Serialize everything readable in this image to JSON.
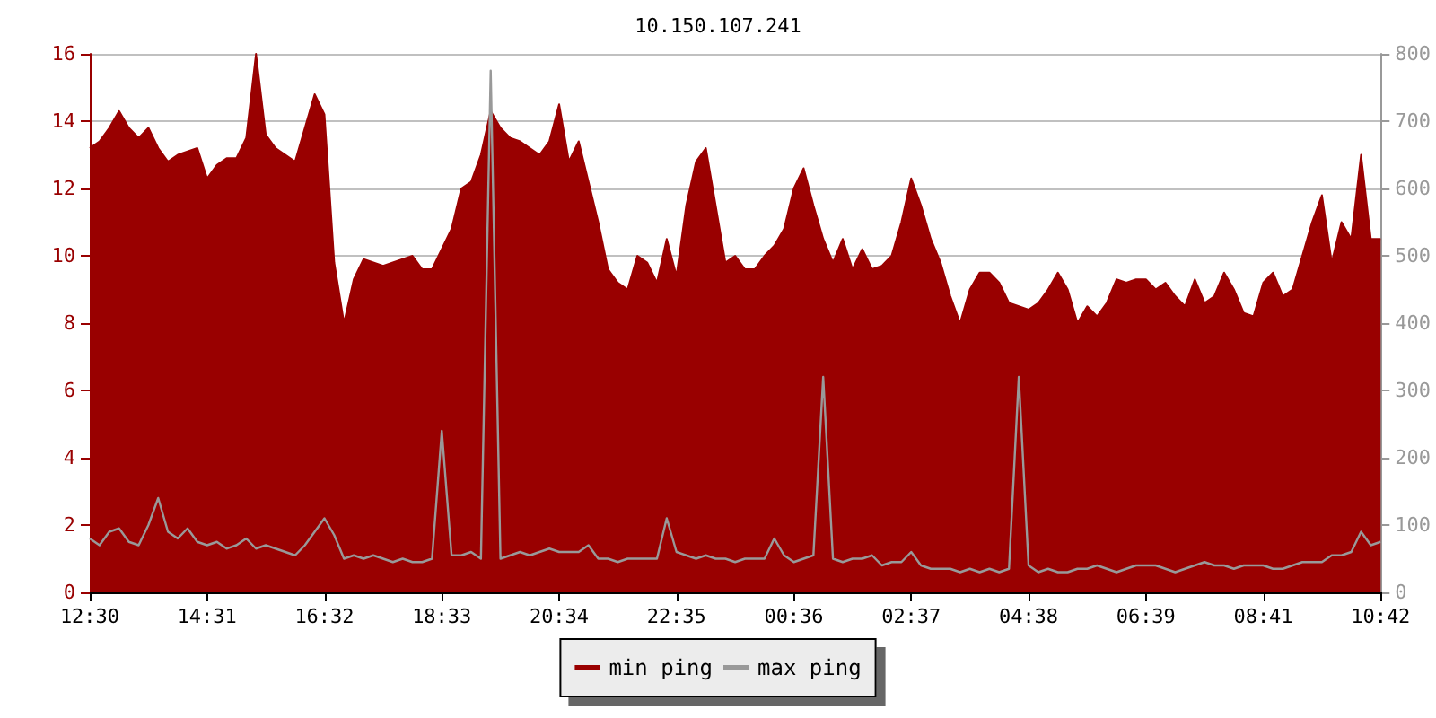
{
  "chart_data": {
    "type": "area",
    "title": "10.150.107.241",
    "categories": [
      "12:30",
      null,
      null,
      null,
      null,
      null,
      null,
      null,
      null,
      null,
      null,
      null,
      "14:31",
      null,
      null,
      null,
      null,
      null,
      null,
      null,
      null,
      null,
      null,
      null,
      "16:32",
      null,
      null,
      null,
      null,
      null,
      null,
      null,
      null,
      null,
      null,
      null,
      "18:33",
      null,
      null,
      null,
      null,
      null,
      null,
      null,
      null,
      null,
      null,
      null,
      "20:34",
      null,
      null,
      null,
      null,
      null,
      null,
      null,
      null,
      null,
      null,
      null,
      "22:35",
      null,
      null,
      null,
      null,
      null,
      null,
      null,
      null,
      null,
      null,
      null,
      "00:36",
      null,
      null,
      null,
      null,
      null,
      null,
      null,
      null,
      null,
      null,
      null,
      "02:37",
      null,
      null,
      null,
      null,
      null,
      null,
      null,
      null,
      null,
      null,
      null,
      "04:38",
      null,
      null,
      null,
      null,
      null,
      null,
      null,
      null,
      null,
      null,
      null,
      "06:39",
      null,
      null,
      null,
      null,
      null,
      null,
      null,
      null,
      null,
      null,
      null,
      "08:41",
      null,
      null,
      null,
      null,
      null,
      null,
      null,
      null,
      null,
      null,
      null,
      "10:42"
    ],
    "ylim": [
      0,
      16
    ],
    "yticks": [
      0,
      2,
      4,
      6,
      8,
      10,
      12,
      14,
      16
    ],
    "y2lim": [
      0,
      800
    ],
    "y2ticks": [
      0,
      100,
      200,
      300,
      400,
      500,
      600,
      700,
      800
    ],
    "grid": "y",
    "legend": "bottom",
    "marker": "none",
    "series": [
      {
        "name": "min ping",
        "type": "area",
        "color": "#990000",
        "values": [
          13.2,
          13.4,
          13.8,
          14.3,
          13.8,
          13.5,
          13.8,
          13.2,
          12.8,
          13.0,
          13.1,
          13.2,
          12.3,
          12.7,
          12.9,
          12.9,
          13.5,
          16.0,
          13.6,
          13.2,
          13.0,
          12.8,
          13.8,
          14.8,
          14.2,
          9.8,
          8.0,
          9.3,
          9.9,
          9.8,
          9.7,
          9.8,
          9.9,
          10.0,
          9.6,
          9.6,
          10.2,
          10.8,
          12.0,
          12.2,
          13.0,
          14.3,
          13.8,
          13.5,
          13.4,
          13.2,
          13.0,
          13.4,
          14.5,
          12.8,
          13.4,
          12.2,
          11.0,
          9.6,
          9.2,
          9.0,
          10.0,
          9.8,
          9.2,
          10.5,
          9.4,
          11.5,
          12.8,
          13.2,
          11.5,
          9.8,
          10.0,
          9.6,
          9.6,
          10.0,
          10.3,
          10.8,
          12.0,
          12.6,
          11.5,
          10.5,
          9.8,
          10.5,
          9.6,
          10.2,
          9.6,
          9.7,
          10.0,
          11.0,
          12.3,
          11.5,
          10.5,
          9.8,
          8.8,
          8.0,
          9.0,
          9.5,
          9.5,
          9.2,
          8.6,
          8.5,
          8.4,
          8.6,
          9.0,
          9.5,
          9.0,
          8.0,
          8.5,
          8.2,
          8.6,
          9.3,
          9.2,
          9.3,
          9.3,
          9.0,
          9.2,
          8.8,
          8.5,
          9.3,
          8.6,
          8.8,
          9.5,
          9.0,
          8.3,
          8.2,
          9.2,
          9.5,
          8.8,
          9.0,
          10.0,
          11.0,
          11.8,
          9.8,
          11.0,
          10.5,
          13.0,
          10.5,
          10.5
        ]
      },
      {
        "name": "max ping",
        "type": "line",
        "axis": "y2",
        "color": "#999999",
        "values": [
          80,
          70,
          90,
          95,
          75,
          70,
          100,
          140,
          90,
          80,
          95,
          75,
          70,
          75,
          65,
          70,
          80,
          65,
          70,
          65,
          60,
          55,
          70,
          90,
          110,
          85,
          50,
          55,
          50,
          55,
          50,
          45,
          50,
          45,
          45,
          50,
          240,
          55,
          55,
          60,
          50,
          775,
          50,
          55,
          60,
          55,
          60,
          65,
          60,
          60,
          60,
          70,
          50,
          50,
          45,
          50,
          50,
          50,
          50,
          110,
          60,
          55,
          50,
          55,
          50,
          50,
          45,
          50,
          50,
          50,
          80,
          55,
          45,
          50,
          55,
          320,
          50,
          45,
          50,
          50,
          55,
          40,
          45,
          45,
          60,
          40,
          35,
          35,
          35,
          30,
          35,
          30,
          35,
          30,
          35,
          320,
          40,
          30,
          35,
          30,
          30,
          35,
          35,
          40,
          35,
          30,
          35,
          40,
          40,
          40,
          35,
          30,
          35,
          40,
          45,
          40,
          40,
          35,
          40,
          40,
          40,
          35,
          35,
          40,
          45,
          45,
          45,
          55,
          55,
          60,
          90,
          70,
          75
        ]
      }
    ]
  }
}
